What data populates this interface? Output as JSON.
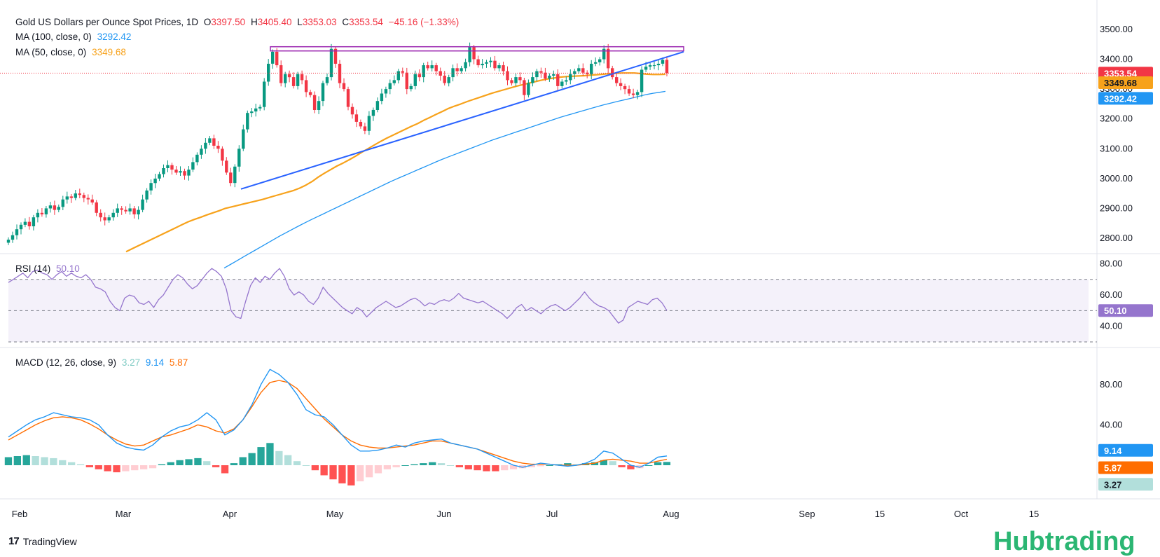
{
  "header": {
    "symbol": "Gold US Dollars per Ounce Spot Prices, 1D",
    "o_label": "O",
    "o_value": "3397.50",
    "h_label": "H",
    "h_value": "3405.40",
    "l_label": "L",
    "l_value": "3353.03",
    "c_label": "C",
    "c_value": "3353.54",
    "change": "−45.16 (−1.33%)",
    "ma100_label": "MA (100, close, 0)",
    "ma100_value": "3292.42",
    "ma50_label": "MA (50, close, 0)",
    "ma50_value": "3349.68",
    "rsi_label": "RSI (14)",
    "rsi_value": "50.10",
    "macd_label": "MACD (12, 26, close, 9)",
    "macd_hist": "3.27",
    "macd_line": "9.14",
    "macd_signal": "5.87"
  },
  "price_tags": {
    "last": "3353.54",
    "ma50": "3349.68",
    "ma100": "3292.42",
    "rsi": "50.10",
    "macd_line": "9.14",
    "macd_signal": "5.87",
    "macd_hist": "3.27"
  },
  "colors": {
    "up": "#089981",
    "down": "#f23645",
    "ma50": "#f7a21b",
    "ma100": "#2196f3",
    "trend": "#2962ff",
    "resistance": "#9c27b0",
    "rsi": "#9575cd",
    "macd": "#2196f3",
    "signal": "#ff6d00",
    "hist_up": "#26a69a",
    "hist_up_light": "#b2dfdb",
    "hist_down": "#ff5252",
    "hist_down_light": "#ffcdd2"
  },
  "footer": {
    "tradingview": "TradingView",
    "brand": "Hubtrading"
  },
  "chart_data": [
    {
      "type": "candlestick",
      "title": "Gold US Dollars per Ounce Spot Prices, 1D",
      "y_ticks": [
        "3500.00",
        "3400.00",
        "3300.00",
        "3200.00",
        "3100.00",
        "3000.00",
        "2900.00",
        "2800.00"
      ],
      "ylim": [
        2800,
        3500
      ],
      "x_ticks": [
        "Feb",
        "Mar",
        "Apr",
        "May",
        "Jun",
        "Jul",
        "Aug",
        "Sep",
        "15",
        "Oct",
        "15"
      ],
      "closes": [
        2795,
        2810,
        2830,
        2845,
        2855,
        2840,
        2870,
        2885,
        2880,
        2900,
        2910,
        2895,
        2905,
        2930,
        2940,
        2935,
        2950,
        2945,
        2935,
        2930,
        2920,
        2885,
        2870,
        2860,
        2870,
        2885,
        2900,
        2895,
        2890,
        2900,
        2880,
        2895,
        2930,
        2960,
        2985,
        3000,
        3015,
        3035,
        3045,
        3030,
        3020,
        3025,
        3010,
        3030,
        3055,
        3080,
        3100,
        3120,
        3135,
        3110,
        3100,
        3060,
        3020,
        2985,
        3040,
        3100,
        3165,
        3220,
        3225,
        3235,
        3240,
        3325,
        3385,
        3425,
        3380,
        3320,
        3350,
        3340,
        3310,
        3350,
        3330,
        3290,
        3280,
        3230,
        3260,
        3320,
        3340,
        3435,
        3385,
        3320,
        3300,
        3240,
        3215,
        3190,
        3175,
        3160,
        3210,
        3230,
        3260,
        3285,
        3300,
        3320,
        3330,
        3360,
        3355,
        3300,
        3310,
        3350,
        3340,
        3380,
        3370,
        3380,
        3360,
        3345,
        3320,
        3340,
        3370,
        3360,
        3370,
        3390,
        3440,
        3400,
        3380,
        3385,
        3390,
        3395,
        3370,
        3380,
        3360,
        3330,
        3320,
        3340,
        3330,
        3280,
        3320,
        3340,
        3360,
        3355,
        3335,
        3345,
        3350,
        3310,
        3325,
        3330,
        3350,
        3360,
        3370,
        3355,
        3350,
        3385,
        3390,
        3400,
        3435,
        3370,
        3340,
        3320,
        3310,
        3300,
        3285,
        3280,
        3290,
        3365,
        3375,
        3380,
        3380,
        3385,
        3398,
        3353.54
      ],
      "ma50": [
        2755,
        2765,
        2775,
        2785,
        2795,
        2805,
        2815,
        2825,
        2835,
        2845,
        2855,
        2863,
        2870,
        2878,
        2885,
        2892,
        2900,
        2905,
        2910,
        2915,
        2920,
        2925,
        2930,
        2936,
        2942,
        2948,
        2954,
        2960,
        2968,
        2978,
        2990,
        3005,
        3018,
        3030,
        3042,
        3052,
        3063,
        3075,
        3088,
        3100,
        3112,
        3124,
        3135,
        3145,
        3155,
        3165,
        3175,
        3184,
        3195,
        3205,
        3215,
        3225,
        3235,
        3243,
        3250,
        3258,
        3265,
        3272,
        3279,
        3286,
        3292,
        3298,
        3304,
        3310,
        3315,
        3320,
        3325,
        3330,
        3334,
        3337,
        3340,
        3342,
        3343,
        3344,
        3345,
        3347,
        3348,
        3350,
        3352,
        3353,
        3354,
        3354,
        3354,
        3352,
        3350,
        3349,
        3349,
        3349.68
      ],
      "ma100": [
        2700,
        2712,
        2724,
        2736,
        2748,
        2760,
        2772,
        2784,
        2796,
        2808,
        2819,
        2830,
        2841,
        2852,
        2862,
        2872,
        2882,
        2892,
        2902,
        2912,
        2922,
        2932,
        2942,
        2952,
        2962,
        2972,
        2982,
        2992,
        3001,
        3010,
        3019,
        3028,
        3037,
        3046,
        3055,
        3064,
        3072,
        3080,
        3088,
        3096,
        3104,
        3112,
        3120,
        3128,
        3135,
        3142,
        3149,
        3156,
        3163,
        3170,
        3177,
        3184,
        3191,
        3198,
        3205,
        3211,
        3217,
        3223,
        3229,
        3235,
        3241,
        3247,
        3252,
        3257,
        3262,
        3267,
        3272,
        3277,
        3282,
        3286,
        3289,
        3292.42
      ],
      "resistance": 3435,
      "last": 3353.54
    },
    {
      "type": "line",
      "title": "RSI (14)",
      "y_ticks": [
        "80.00",
        "60.00",
        "40.00"
      ],
      "ylim": [
        30,
        82
      ],
      "bands": [
        70,
        50,
        30
      ],
      "series": [
        {
          "name": "RSI (14)",
          "values": [
            68,
            70,
            72,
            74,
            71,
            75,
            76,
            74,
            73,
            70,
            73,
            75,
            72,
            74,
            72,
            71,
            73,
            70,
            65,
            64,
            62,
            56,
            52,
            50,
            58,
            60,
            59,
            55,
            54,
            56,
            52,
            57,
            60,
            65,
            70,
            73,
            71,
            67,
            64,
            66,
            70,
            74,
            77,
            75,
            72,
            64,
            50,
            46,
            45,
            56,
            66,
            71,
            68,
            72,
            70,
            74,
            77,
            72,
            64,
            60,
            62,
            60,
            56,
            54,
            58,
            65,
            61,
            58,
            55,
            52,
            50,
            48,
            52,
            50,
            46,
            49,
            52,
            54,
            56,
            54,
            52,
            53,
            55,
            57,
            58,
            56,
            53,
            55,
            54,
            56,
            57,
            56,
            58,
            61,
            58,
            57,
            56,
            55,
            56,
            54,
            52,
            50,
            48,
            45,
            48,
            52,
            54,
            50,
            52,
            50,
            48,
            51,
            53,
            54,
            52,
            50,
            52,
            55,
            58,
            62,
            58,
            55,
            53,
            52,
            50,
            46,
            42,
            44,
            52,
            54,
            56,
            55,
            54,
            57,
            58,
            55,
            50.1
          ]
        }
      ]
    },
    {
      "type": "line",
      "title": "MACD (12, 26, close, 9)",
      "y_ticks": [
        "80.00",
        "40.00"
      ],
      "ylim": [
        -25,
        100
      ],
      "series": [
        {
          "name": "MACD",
          "values": [
            28,
            34,
            40,
            45,
            48,
            52,
            50,
            48,
            47,
            45,
            40,
            30,
            22,
            18,
            16,
            15,
            20,
            28,
            34,
            38,
            40,
            45,
            52,
            45,
            30,
            35,
            45,
            60,
            80,
            95,
            90,
            82,
            70,
            55,
            50,
            48,
            40,
            30,
            20,
            14,
            14,
            15,
            17,
            20,
            18,
            22,
            24,
            25,
            26,
            22,
            20,
            18,
            16,
            12,
            8,
            4,
            0,
            -2,
            0,
            2,
            1,
            0,
            -1,
            0,
            2,
            6,
            14,
            12,
            6,
            0,
            -2,
            2,
            8,
            9.14
          ]
        },
        {
          "name": "Signal",
          "values": [
            25,
            30,
            35,
            40,
            44,
            47,
            48,
            47,
            45,
            41,
            36,
            30,
            25,
            21,
            19,
            20,
            24,
            28,
            30,
            33,
            36,
            40,
            38,
            34,
            32,
            36,
            45,
            58,
            72,
            82,
            84,
            82,
            76,
            66,
            56,
            46,
            38,
            30,
            24,
            20,
            18,
            17,
            17,
            18,
            19,
            20,
            22,
            24,
            24,
            22,
            20,
            18,
            16,
            13,
            10,
            7,
            4,
            2,
            1,
            1,
            1,
            0,
            0,
            0,
            1,
            2,
            5,
            6,
            5,
            4,
            2,
            2,
            4,
            5.87
          ]
        },
        {
          "name": "Histogram",
          "values": [
            8,
            9,
            10,
            9,
            8,
            7,
            5,
            3,
            1,
            -2,
            -4,
            -6,
            -7,
            -6,
            -5,
            -4,
            -3,
            1,
            3,
            5,
            6,
            7,
            4,
            -2,
            -8,
            2,
            8,
            12,
            18,
            22,
            14,
            10,
            4,
            0,
            -5,
            -10,
            -14,
            -18,
            -20,
            -16,
            -12,
            -8,
            -4,
            -2,
            0,
            1,
            2,
            3,
            2,
            0,
            -2,
            -4,
            -5,
            -6,
            -6,
            -5,
            -4,
            -3,
            -2,
            -1,
            0,
            1,
            2,
            1,
            2,
            3,
            5,
            4,
            -2,
            -4,
            -3,
            0,
            3,
            3.27
          ]
        }
      ]
    }
  ]
}
